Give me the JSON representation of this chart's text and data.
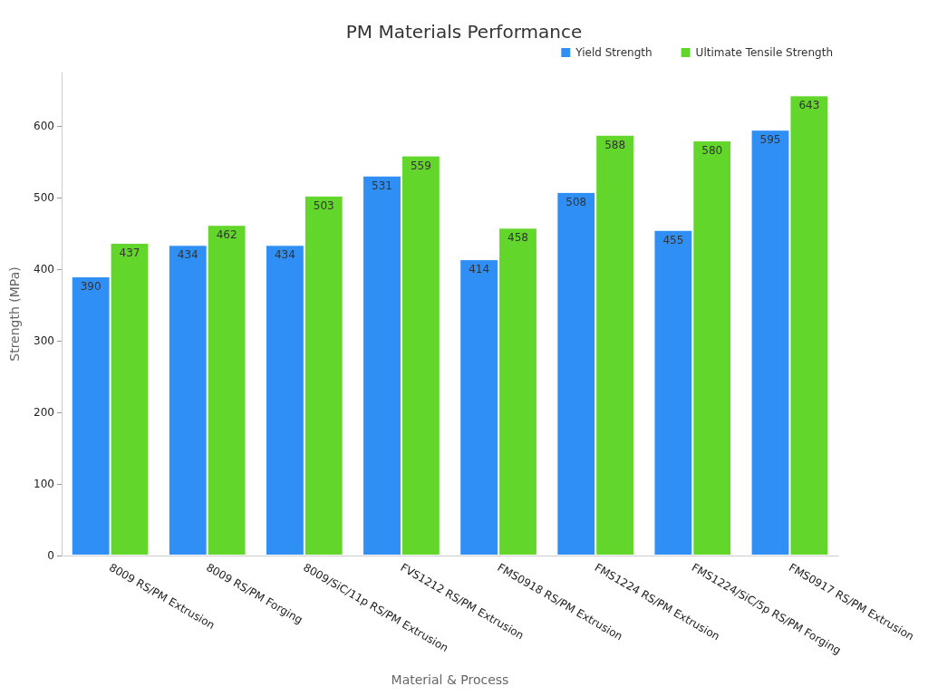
{
  "chart_data": {
    "type": "bar",
    "title": "PM Materials Performance",
    "xlabel": "Material & Process",
    "ylabel": "Strength (MPa)",
    "categories": [
      "8009 RS/PM Extrusion",
      "8009 RS/PM Forging",
      "8009/SiC/11p RS/PM Extrusion",
      "FVS1212 RS/PM Extrusion",
      "FMS0918 RS/PM Extrusion",
      "FMS1224 RS/PM Extrusion",
      "FMS1224/SiC/5p RS/PM Forging",
      "FMS0917 RS/PM Extrusion"
    ],
    "series": [
      {
        "name": "Yield Strength",
        "color": "#2f8ff5",
        "values": [
          390,
          434,
          434,
          531,
          414,
          508,
          455,
          595
        ]
      },
      {
        "name": "Ultimate Tensile Strength",
        "color": "#62d62a",
        "values": [
          437,
          462,
          503,
          559,
          458,
          588,
          580,
          643
        ]
      }
    ],
    "ylim": [
      0,
      675
    ],
    "yticks": [
      0,
      100,
      200,
      300,
      400,
      500,
      600
    ],
    "grid": false,
    "legend": "top right",
    "data_labels": true
  }
}
